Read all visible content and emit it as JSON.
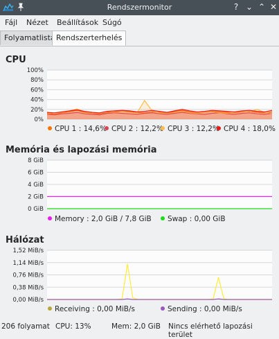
{
  "window": {
    "title": "Rendszermonitor",
    "buttons": [
      "?",
      "⌄",
      "⌃",
      "✕"
    ]
  },
  "menu": [
    "Fájl",
    "Nézet",
    "Beállítások",
    "Súgó"
  ],
  "tabs": [
    "Folyamatlista",
    "Rendszerterhelés"
  ],
  "cpu": {
    "title": "CPU",
    "y_ticks": [
      "100%",
      "80%",
      "60%",
      "40%",
      "20%",
      "0%"
    ],
    "legend": [
      {
        "label": "CPU 1 : 14,6%",
        "color": "#f67400"
      },
      {
        "label": "CPU 2 : 12,2%",
        "color": "#da4453"
      },
      {
        "label": "CPU 3 : 12,2%",
        "color": "#fdbc4b"
      },
      {
        "label": "CPU 4 : 18,0%",
        "color": "#ed1515"
      }
    ]
  },
  "memory": {
    "title": "Memória és lapozási memória",
    "y_ticks": [
      "8 GiB",
      "6 GiB",
      "4 GiB",
      "2 GiB",
      "0 GiB"
    ],
    "legend": [
      {
        "label": "Memory : 2,0 GiB / 7,8 GiB",
        "color": "#e91ee9"
      },
      {
        "label": "Swap : 0,00 GiB",
        "color": "#1cdc1c"
      }
    ]
  },
  "network": {
    "title": "Hálózat",
    "y_ticks": [
      "1,52 MiB/s",
      "1,14 MiB/s",
      "0,76 MiB/s",
      "0,38 MiB/s",
      "0,00 MiB/s"
    ],
    "legend": [
      {
        "label": "Receiving : 0,00 MiB/s",
        "color": "#b8a738"
      },
      {
        "label": "Sending : 0,00 MiB/s",
        "color": "#9b59b6"
      }
    ]
  },
  "chart_data": [
    {
      "type": "line",
      "ylim": [
        0,
        100
      ],
      "y_unit": "%",
      "grid": true,
      "series": [
        {
          "name": "CPU 1",
          "color": "#f67400",
          "values": [
            12,
            10,
            13,
            15,
            18,
            14,
            12,
            11,
            13,
            15,
            17,
            16,
            14,
            13,
            15,
            14,
            12,
            16,
            18,
            15,
            13,
            14,
            16,
            15,
            14,
            13,
            15,
            16,
            14,
            13,
            15
          ]
        },
        {
          "name": "CPU 2",
          "color": "#da4453",
          "values": [
            10,
            9,
            11,
            12,
            14,
            11,
            10,
            9,
            12,
            13,
            12,
            11,
            10,
            12,
            13,
            11,
            10,
            12,
            14,
            12,
            11,
            10,
            12,
            13,
            11,
            10,
            12,
            13,
            11,
            10,
            12
          ]
        },
        {
          "name": "CPU 3",
          "color": "#fdbc4b",
          "values": [
            11,
            13,
            14,
            17,
            21,
            15,
            12,
            13,
            15,
            14,
            16,
            14,
            13,
            38,
            17,
            13,
            12,
            14,
            16,
            13,
            12,
            14,
            15,
            13,
            12,
            14,
            16,
            15,
            20,
            14,
            12
          ]
        },
        {
          "name": "CPU 4",
          "color": "#ed1515",
          "values": [
            14,
            13,
            15,
            17,
            19,
            16,
            14,
            13,
            16,
            17,
            18,
            17,
            15,
            16,
            18,
            16,
            14,
            17,
            20,
            17,
            15,
            16,
            18,
            17,
            16,
            15,
            17,
            18,
            16,
            15,
            18
          ]
        }
      ]
    },
    {
      "type": "line",
      "ylim": [
        0,
        8
      ],
      "y_unit": "GiB",
      "grid": true,
      "series": [
        {
          "name": "Memory",
          "color": "#e91ee9",
          "values": [
            2.0,
            2.0
          ]
        },
        {
          "name": "Swap",
          "color": "#1cdc1c",
          "values": [
            0.0,
            0.0
          ]
        }
      ]
    },
    {
      "type": "line",
      "ylim": [
        0,
        1.52
      ],
      "y_unit": "MiB/s",
      "grid": true,
      "series": [
        {
          "name": "Receiving",
          "color": "#fdec3b",
          "values": [
            0,
            0,
            0,
            0,
            0,
            0,
            0,
            0,
            0,
            0,
            0,
            0,
            0,
            0,
            0.02,
            1.1,
            0.05,
            0,
            0,
            0,
            0,
            0,
            0,
            0,
            0,
            0,
            0,
            0,
            0,
            0,
            0,
            0.02,
            0.68,
            0.02,
            0,
            0,
            0,
            0,
            0,
            0,
            0,
            0,
            0
          ]
        },
        {
          "name": "Sending",
          "color": "#9b59b6",
          "values": [
            0,
            0,
            0,
            0,
            0,
            0,
            0,
            0,
            0,
            0,
            0,
            0,
            0,
            0,
            0,
            0.02,
            0,
            0,
            0,
            0,
            0,
            0,
            0,
            0,
            0,
            0,
            0,
            0,
            0,
            0,
            0,
            0,
            0.02,
            0,
            0,
            0,
            0,
            0,
            0,
            0,
            0,
            0,
            0
          ]
        }
      ]
    }
  ],
  "status": {
    "processes": "206 folyamat",
    "cpu": "CPU: 13%",
    "mem": "Mem: 2,0 GiB",
    "swap": "Nincs elérhető lapozási terület"
  }
}
